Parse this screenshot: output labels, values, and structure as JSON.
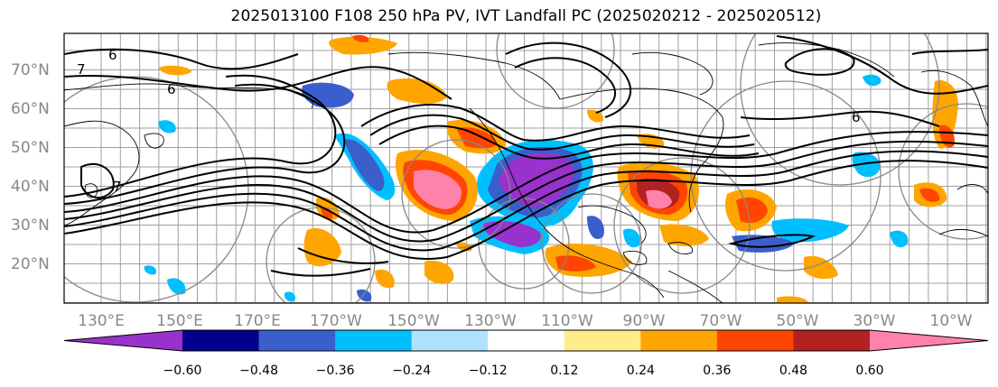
{
  "title": "2025013100 F108 250 hPa PV, IVT Landfall PC (2025020212 - 2025020512)",
  "map": {
    "lat_labels": [
      "70°N",
      "60°N",
      "50°N",
      "40°N",
      "30°N",
      "20°N"
    ],
    "lon_labels": [
      "130°E",
      "150°E",
      "170°E",
      "170°W",
      "150°W",
      "130°W",
      "110°W",
      "90°W",
      "70°W",
      "50°W",
      "30°W",
      "10°W"
    ],
    "contour_labels": [
      "7",
      "6",
      "6",
      "7",
      "6"
    ],
    "line_color": "#000000",
    "grid_color": "#888888"
  },
  "colorbar": {
    "ticks": [
      "−0.60",
      "−0.48",
      "−0.36",
      "−0.24",
      "−0.12",
      "0.12",
      "0.24",
      "0.36",
      "0.48",
      "0.60"
    ],
    "colors": [
      "#9932cc",
      "#00008b",
      "#3a5fcd",
      "#00bfff",
      "#b0e2ff",
      "#ffffff",
      "#ffec8b",
      "#ffa500",
      "#ff4500",
      "#b22222",
      "#ff82ab"
    ]
  }
}
